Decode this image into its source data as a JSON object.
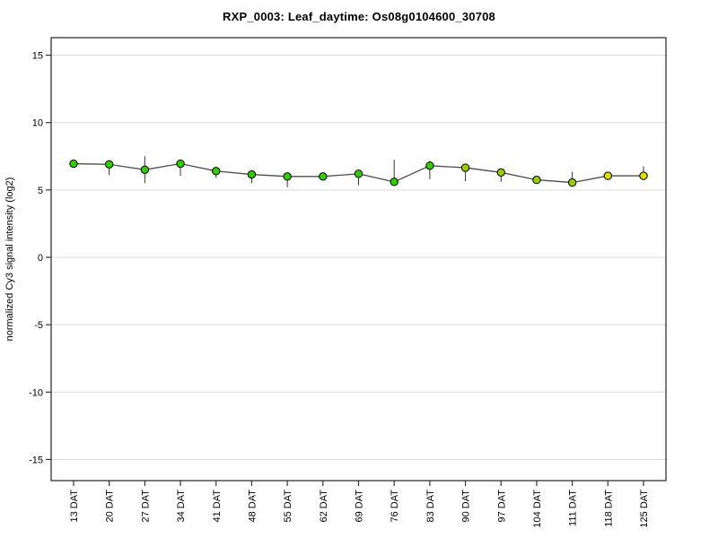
{
  "page": {
    "background": "#ffffff"
  },
  "chart_data": {
    "type": "line",
    "title": "RXP_0003: Leaf_daytime: Os08g0104600_30708",
    "ylabel": "normalized Cy3 signal intensity (log2)",
    "xlabel": "",
    "legend": "none",
    "grid": "horizontal-only",
    "categories": [
      "13 DAT",
      "20 DAT",
      "27 DAT",
      "34 DAT",
      "41 DAT",
      "48 DAT",
      "55 DAT",
      "62 DAT",
      "69 DAT",
      "76 DAT",
      "83 DAT",
      "90 DAT",
      "97 DAT",
      "104 DAT",
      "111 DAT",
      "118 DAT",
      "125 DAT"
    ],
    "yticks": [
      15,
      10,
      5,
      0,
      -5,
      -10,
      -15
    ],
    "ylim": [
      -16.5,
      16.5
    ],
    "series": [
      {
        "name": "normalized Cy3 signal intensity",
        "values": [
          6.95,
          6.9,
          6.5,
          6.95,
          6.4,
          6.15,
          6.0,
          6.0,
          6.2,
          5.6,
          6.8,
          6.65,
          6.3,
          5.75,
          5.55,
          6.05,
          6.05
        ],
        "err_up": [
          0.1,
          0.2,
          1.0,
          0.2,
          0.2,
          0.15,
          0.15,
          0.1,
          0.2,
          1.65,
          0.35,
          0.3,
          0.25,
          0.15,
          0.8,
          0.2,
          0.7
        ],
        "err_down": [
          0.1,
          0.8,
          1.0,
          0.9,
          0.5,
          0.65,
          0.8,
          0.1,
          0.85,
          0.3,
          1.0,
          1.0,
          0.7,
          0.3,
          0.3,
          0.2,
          0.15
        ],
        "point_colors": [
          "#33CC00",
          "#33CC00",
          "#33CC00",
          "#33CC00",
          "#33CC00",
          "#33CC00",
          "#33CC00",
          "#33CC00",
          "#33CC00",
          "#33CC00",
          "#33CC00",
          "#99CC00",
          "#99CC00",
          "#99CC00",
          "#99CC00",
          "#DDDD00",
          "#DDDD00"
        ]
      }
    ],
    "colors": {
      "line": "#4d4d4d",
      "error_bar": "#333333",
      "grid": "#dcdcdc",
      "frame": "#333333",
      "tick": "#333333",
      "marker_stroke": "#000000",
      "text": "#000000"
    }
  }
}
